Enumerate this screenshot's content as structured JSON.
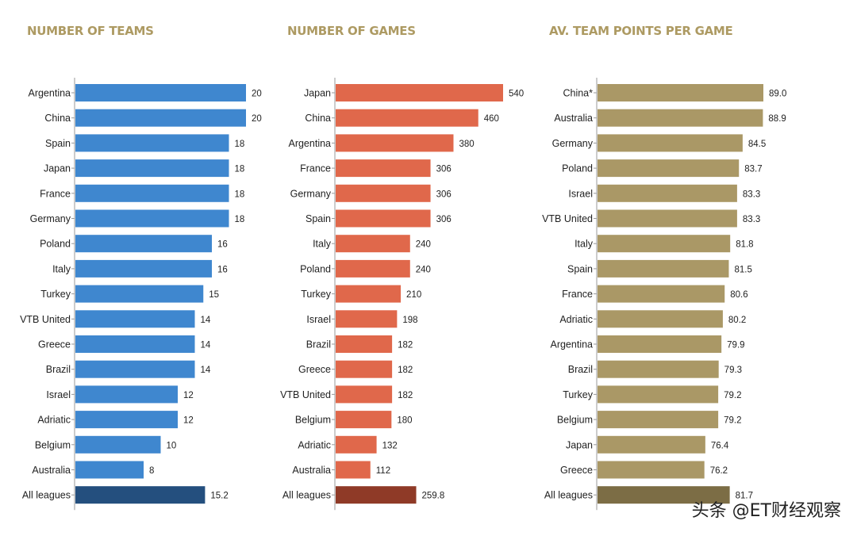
{
  "watermark": "头条 @ET财经观察",
  "chart_data": [
    {
      "type": "bar",
      "orientation": "horizontal",
      "title": "NUMBER OF TEAMS",
      "bar_color": "#3f87cf",
      "total_color": "#244f7e",
      "categories": [
        "Argentina",
        "China",
        "Spain",
        "Japan",
        "France",
        "Germany",
        "Poland",
        "Italy",
        "Turkey",
        "VTB United",
        "Greece",
        "Brazil",
        "Israel",
        "Adriatic",
        "Belgium",
        "Australia",
        "All leagues"
      ],
      "values": [
        20,
        20,
        18,
        18,
        18,
        18,
        16,
        16,
        15,
        14,
        14,
        14,
        12,
        12,
        10,
        8,
        15.2
      ],
      "value_labels": [
        "20",
        "20",
        "18",
        "18",
        "18",
        "18",
        "16",
        "16",
        "15",
        "14",
        "14",
        "14",
        "12",
        "12",
        "10",
        "8",
        "15.2"
      ],
      "xlim": [
        0,
        20
      ]
    },
    {
      "type": "bar",
      "orientation": "horizontal",
      "title": "NUMBER OF GAMES",
      "bar_color": "#e0684b",
      "total_color": "#8f3a27",
      "categories": [
        "Japan",
        "China",
        "Argentina",
        "France",
        "Germany",
        "Spain",
        "Italy",
        "Poland",
        "Turkey",
        "Israel",
        "Brazil",
        "Greece",
        "VTB United",
        "Belgium",
        "Adriatic",
        "Australia",
        "All leagues"
      ],
      "values": [
        540,
        460,
        380,
        306,
        306,
        306,
        240,
        240,
        210,
        198,
        182,
        182,
        182,
        180,
        132,
        112,
        259.8
      ],
      "value_labels": [
        "540",
        "460",
        "380",
        "306",
        "306",
        "306",
        "240",
        "240",
        "210",
        "198",
        "182",
        "182",
        "182",
        "180",
        "132",
        "112",
        "259.8"
      ],
      "xlim": [
        0,
        540
      ]
    },
    {
      "type": "bar",
      "orientation": "horizontal",
      "title": "AV. TEAM POINTS PER GAME",
      "bar_color": "#aa9866",
      "total_color": "#7c6d45",
      "categories": [
        "China*",
        "Australia",
        "Germany",
        "Poland",
        "Israel",
        "VTB United",
        "Italy",
        "Spain",
        "France",
        "Adriatic",
        "Argentina",
        "Brazil",
        "Turkey",
        "Belgium",
        "Japan",
        "Greece",
        "All leagues"
      ],
      "values": [
        89.0,
        88.9,
        84.5,
        83.7,
        83.3,
        83.3,
        81.8,
        81.5,
        80.6,
        80.2,
        79.9,
        79.3,
        79.2,
        79.2,
        76.4,
        76.2,
        81.7
      ],
      "value_labels": [
        "89.0",
        "88.9",
        "84.5",
        "83.7",
        "83.3",
        "83.3",
        "81.8",
        "81.5",
        "80.6",
        "80.2",
        "79.9",
        "79.3",
        "79.2",
        "79.2",
        "76.4",
        "76.2",
        "81.7"
      ],
      "xlim": [
        53,
        89
      ]
    }
  ]
}
